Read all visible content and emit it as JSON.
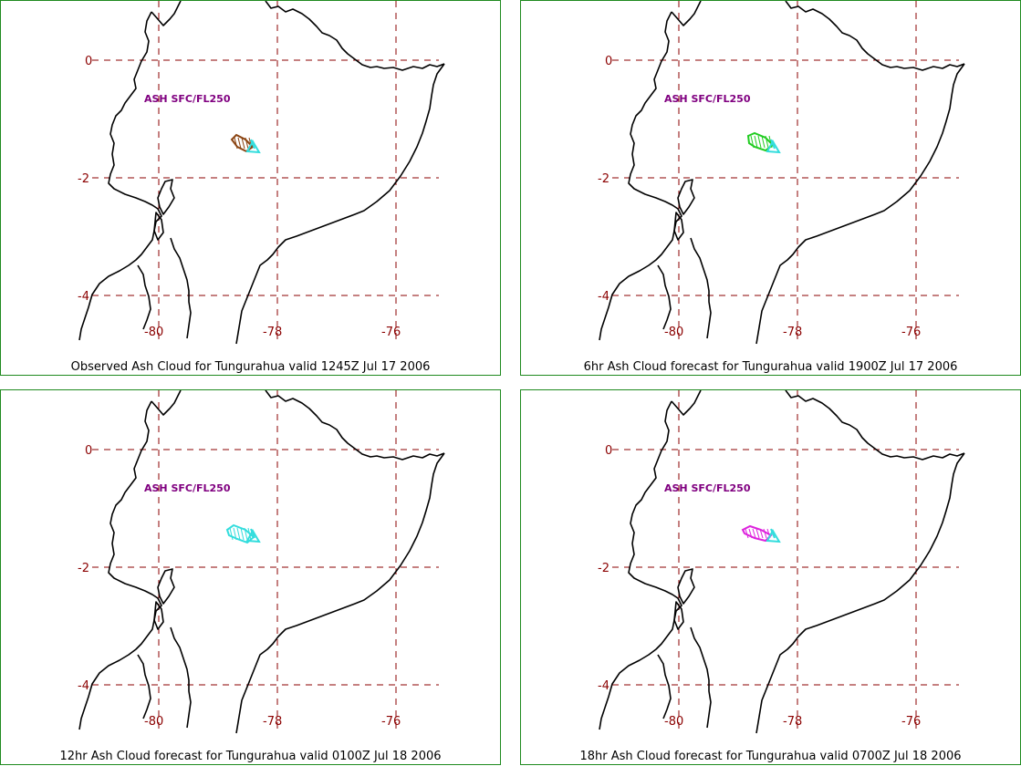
{
  "hazard_label": "ASH SFC/FL250",
  "volcano_marker_color": "#33dddd",
  "grid_color": "#8b0000",
  "coast_color": "#000000",
  "panels": [
    {
      "caption": "Observed Ash Cloud for Tungurahua valid 1245Z Jul 17 2006",
      "cloud_color": "#8b4513"
    },
    {
      "caption": "6hr Ash Cloud forecast for Tungurahua valid 1900Z Jul 17 2006",
      "cloud_color": "#22cc22"
    },
    {
      "caption": "12hr Ash Cloud forecast for Tungurahua valid 0100Z Jul 18 2006",
      "cloud_color": "#33dddd"
    },
    {
      "caption": "18hr Ash Cloud forecast for Tungurahua valid 0700Z Jul 18 2006",
      "cloud_color": "#dd22dd"
    }
  ],
  "axes": {
    "lat_labels": [
      "0",
      "-2",
      "-4"
    ],
    "lon_labels": [
      "-80",
      "-78",
      "-76"
    ]
  }
}
